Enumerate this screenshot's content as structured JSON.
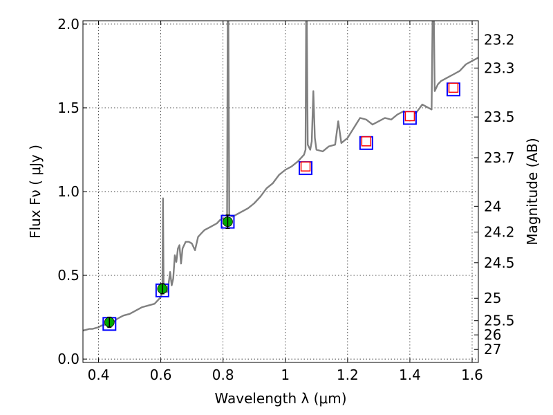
{
  "chart_data": {
    "type": "line",
    "xlabel": "Wavelength  λ (μm)",
    "ylabel": "Flux  Fν  ( μJy )",
    "ylabel_right": "Magnitude (AB)",
    "xlim": [
      0.35,
      1.62
    ],
    "ylim": [
      -0.02,
      2.02
    ],
    "grid": true,
    "x_ticks": [
      {
        "v": 0.4,
        "label": "0.4"
      },
      {
        "v": 0.6,
        "label": "0.6"
      },
      {
        "v": 0.8,
        "label": "0.8"
      },
      {
        "v": 1.0,
        "label": "1"
      },
      {
        "v": 1.2,
        "label": "1.2"
      },
      {
        "v": 1.4,
        "label": "1.4"
      },
      {
        "v": 1.6,
        "label": "1.6"
      }
    ],
    "y_ticks": [
      {
        "v": 0.0,
        "label": "0.0"
      },
      {
        "v": 0.5,
        "label": "0.5"
      },
      {
        "v": 1.0,
        "label": "1.0"
      },
      {
        "v": 1.5,
        "label": "1.5"
      },
      {
        "v": 2.0,
        "label": "2.0"
      }
    ],
    "mag_ticks": [
      {
        "mag": 23.2,
        "label": "23.2"
      },
      {
        "mag": 23.3,
        "label": "23.3"
      },
      {
        "mag": 23.5,
        "label": "23.5"
      },
      {
        "mag": 23.7,
        "label": "23.7"
      },
      {
        "mag": 24.0,
        "label": "24"
      },
      {
        "mag": 24.2,
        "label": "24.2"
      },
      {
        "mag": 24.5,
        "label": "24.5"
      },
      {
        "mag": 25.0,
        "label": "25"
      },
      {
        "mag": 25.5,
        "label": "25.5"
      },
      {
        "mag": 26.0,
        "label": "26"
      },
      {
        "mag": 27.0,
        "label": "27"
      }
    ],
    "mag_zero_point": 23.9,
    "spectrum": {
      "color": "#808080",
      "points": [
        [
          0.35,
          0.17
        ],
        [
          0.36,
          0.175
        ],
        [
          0.37,
          0.18
        ],
        [
          0.38,
          0.18
        ],
        [
          0.39,
          0.185
        ],
        [
          0.4,
          0.19
        ],
        [
          0.41,
          0.2
        ],
        [
          0.42,
          0.205
        ],
        [
          0.43,
          0.21
        ],
        [
          0.44,
          0.22
        ],
        [
          0.45,
          0.225
        ],
        [
          0.46,
          0.24
        ],
        [
          0.47,
          0.25
        ],
        [
          0.48,
          0.26
        ],
        [
          0.5,
          0.27
        ],
        [
          0.52,
          0.29
        ],
        [
          0.54,
          0.31
        ],
        [
          0.56,
          0.32
        ],
        [
          0.58,
          0.33
        ],
        [
          0.59,
          0.35
        ],
        [
          0.6,
          0.37
        ],
        [
          0.605,
          0.4
        ],
        [
          0.607,
          0.96
        ],
        [
          0.609,
          0.43
        ],
        [
          0.612,
          0.4
        ],
        [
          0.62,
          0.4
        ],
        [
          0.625,
          0.45
        ],
        [
          0.63,
          0.52
        ],
        [
          0.635,
          0.44
        ],
        [
          0.64,
          0.48
        ],
        [
          0.645,
          0.62
        ],
        [
          0.65,
          0.58
        ],
        [
          0.655,
          0.66
        ],
        [
          0.66,
          0.68
        ],
        [
          0.665,
          0.57
        ],
        [
          0.67,
          0.66
        ],
        [
          0.68,
          0.7
        ],
        [
          0.69,
          0.7
        ],
        [
          0.7,
          0.69
        ],
        [
          0.71,
          0.65
        ],
        [
          0.72,
          0.73
        ],
        [
          0.73,
          0.75
        ],
        [
          0.74,
          0.77
        ],
        [
          0.75,
          0.78
        ],
        [
          0.76,
          0.79
        ],
        [
          0.77,
          0.8
        ],
        [
          0.78,
          0.81
        ],
        [
          0.79,
          0.83
        ],
        [
          0.8,
          0.84
        ],
        [
          0.81,
          0.84
        ],
        [
          0.813,
          0.82
        ],
        [
          0.815,
          2.05
        ],
        [
          0.817,
          2.05
        ],
        [
          0.82,
          0.86
        ],
        [
          0.83,
          0.85
        ],
        [
          0.84,
          0.86
        ],
        [
          0.86,
          0.88
        ],
        [
          0.88,
          0.9
        ],
        [
          0.9,
          0.93
        ],
        [
          0.92,
          0.97
        ],
        [
          0.94,
          1.02
        ],
        [
          0.96,
          1.05
        ],
        [
          0.98,
          1.1
        ],
        [
          1.0,
          1.13
        ],
        [
          1.02,
          1.15
        ],
        [
          1.04,
          1.18
        ],
        [
          1.06,
          1.22
        ],
        [
          1.065,
          1.25
        ],
        [
          1.067,
          2.05
        ],
        [
          1.069,
          2.05
        ],
        [
          1.072,
          1.28
        ],
        [
          1.08,
          1.25
        ],
        [
          1.085,
          1.3
        ],
        [
          1.09,
          1.6
        ],
        [
          1.095,
          1.32
        ],
        [
          1.1,
          1.25
        ],
        [
          1.12,
          1.24
        ],
        [
          1.14,
          1.27
        ],
        [
          1.16,
          1.28
        ],
        [
          1.17,
          1.42
        ],
        [
          1.18,
          1.29
        ],
        [
          1.2,
          1.32
        ],
        [
          1.22,
          1.38
        ],
        [
          1.24,
          1.44
        ],
        [
          1.26,
          1.43
        ],
        [
          1.28,
          1.4
        ],
        [
          1.3,
          1.42
        ],
        [
          1.32,
          1.44
        ],
        [
          1.34,
          1.43
        ],
        [
          1.36,
          1.46
        ],
        [
          1.38,
          1.48
        ],
        [
          1.4,
          1.46
        ],
        [
          1.42,
          1.47
        ],
        [
          1.44,
          1.52
        ],
        [
          1.46,
          1.5
        ],
        [
          1.47,
          1.49
        ],
        [
          1.473,
          2.05
        ],
        [
          1.477,
          2.05
        ],
        [
          1.48,
          1.6
        ],
        [
          1.49,
          1.64
        ],
        [
          1.5,
          1.66
        ],
        [
          1.52,
          1.68
        ],
        [
          1.54,
          1.7
        ],
        [
          1.56,
          1.72
        ],
        [
          1.58,
          1.76
        ],
        [
          1.6,
          1.78
        ],
        [
          1.62,
          1.8
        ]
      ]
    },
    "model_photometry": {
      "color": "#0000ff",
      "points": [
        [
          0.435,
          0.21
        ],
        [
          0.605,
          0.41
        ],
        [
          0.815,
          0.82
        ],
        [
          1.065,
          1.14
        ],
        [
          1.26,
          1.29
        ],
        [
          1.4,
          1.44
        ],
        [
          1.54,
          1.61
        ]
      ]
    },
    "observed_photometry": {
      "color": "#00aa00",
      "points": [
        {
          "x": 0.435,
          "y": 0.22,
          "err": 0.03
        },
        {
          "x": 0.605,
          "y": 0.42,
          "err": 0.03
        },
        {
          "x": 0.815,
          "y": 0.82,
          "err": 0.04
        }
      ]
    },
    "upper_limits": {
      "color": "#ff0000",
      "points": [
        [
          1.065,
          1.15
        ],
        [
          1.26,
          1.3
        ],
        [
          1.4,
          1.45
        ],
        [
          1.54,
          1.62
        ]
      ]
    }
  }
}
